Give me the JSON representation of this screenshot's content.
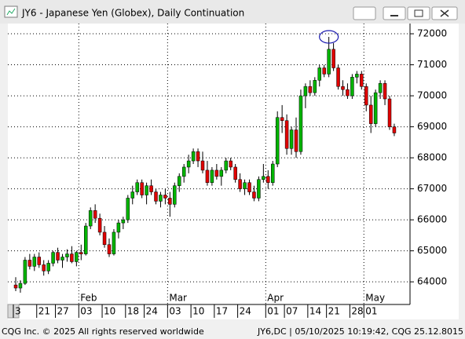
{
  "chart_data": {
    "type": "candlestick",
    "title": "JY6 - Japanese Yen (Globex), Daily Continuation",
    "categories": [
      "3",
      null,
      null,
      null,
      null,
      "21",
      null,
      null,
      null,
      "27",
      null,
      null,
      null,
      null,
      "03",
      null,
      null,
      null,
      null,
      "10",
      null,
      null,
      null,
      null,
      "18",
      null,
      null,
      null,
      "24",
      null,
      null,
      null,
      null,
      "03",
      null,
      null,
      null,
      null,
      "10",
      null,
      null,
      null,
      null,
      "17",
      null,
      null,
      null,
      null,
      "24",
      null,
      null,
      null,
      null,
      null,
      "01",
      null,
      null,
      null,
      "07",
      null,
      null,
      null,
      null,
      "14",
      null,
      null,
      null,
      "21",
      null,
      null,
      null,
      null,
      "28",
      null,
      null,
      "01",
      null,
      null,
      null,
      null,
      null,
      null
    ],
    "months": [
      null,
      null,
      null,
      null,
      null,
      null,
      null,
      null,
      null,
      null,
      null,
      null,
      null,
      null,
      "Feb",
      null,
      null,
      null,
      null,
      null,
      null,
      null,
      null,
      null,
      null,
      null,
      null,
      null,
      null,
      null,
      null,
      null,
      null,
      "Mar",
      null,
      null,
      null,
      null,
      null,
      null,
      null,
      null,
      null,
      null,
      null,
      null,
      null,
      null,
      null,
      null,
      null,
      null,
      null,
      null,
      "Apr",
      null,
      null,
      null,
      null,
      null,
      null,
      null,
      null,
      null,
      null,
      null,
      null,
      null,
      null,
      null,
      null,
      null,
      null,
      null,
      null,
      "May",
      null,
      null,
      null,
      null,
      null,
      null
    ],
    "open": [
      63900,
      63800,
      63950,
      64700,
      64500,
      64800,
      64550,
      64350,
      64600,
      64950,
      64700,
      64800,
      64900,
      64650,
      64950,
      64900,
      65800,
      66300,
      66050,
      65600,
      65200,
      64900,
      65600,
      65900,
      66000,
      66700,
      66900,
      67200,
      66800,
      67100,
      66900,
      66600,
      66800,
      66700,
      66500,
      67100,
      67400,
      67700,
      67900,
      68200,
      67900,
      67600,
      67200,
      67600,
      67400,
      67600,
      67900,
      67700,
      67300,
      67000,
      67200,
      66900,
      66700,
      67300,
      67400,
      67200,
      67800,
      69300,
      69200,
      68300,
      68900,
      68200,
      70000,
      70300,
      70100,
      70500,
      70900,
      70700,
      71500,
      70900,
      70300,
      70200,
      70000,
      70600,
      70700,
      70300,
      69700,
      69100,
      70100,
      70400,
      69900,
      69000
    ],
    "high": [
      64150,
      64050,
      64800,
      64900,
      64900,
      64950,
      64700,
      64700,
      65000,
      65100,
      64900,
      65050,
      65150,
      65000,
      65200,
      65900,
      66400,
      66500,
      66200,
      65800,
      65400,
      65700,
      66000,
      66100,
      66800,
      67100,
      67300,
      67300,
      67200,
      67300,
      67000,
      66900,
      67000,
      66900,
      67200,
      67500,
      67800,
      68100,
      68300,
      68300,
      68200,
      67900,
      67700,
      67800,
      67700,
      68000,
      68000,
      67800,
      67500,
      67300,
      67300,
      67100,
      67400,
      67800,
      67600,
      67900,
      69500,
      69700,
      69400,
      69000,
      69300,
      70200,
      70400,
      70500,
      70600,
      71000,
      71000,
      71900,
      71700,
      71000,
      70500,
      70400,
      70700,
      70800,
      70800,
      70400,
      70000,
      70200,
      70500,
      70500,
      70000,
      69100
    ],
    "low": [
      63700,
      63650,
      63900,
      64400,
      64350,
      64450,
      64200,
      64250,
      64500,
      64600,
      64450,
      64650,
      64600,
      64500,
      64700,
      64850,
      65700,
      65900,
      65500,
      65100,
      64800,
      64850,
      65400,
      65700,
      65900,
      66500,
      66800,
      66700,
      66500,
      66800,
      66500,
      66400,
      66500,
      66100,
      66400,
      66900,
      67200,
      67500,
      67800,
      67700,
      67500,
      67100,
      67100,
      67300,
      67100,
      67500,
      67600,
      67200,
      66900,
      66800,
      66800,
      66600,
      66600,
      67200,
      67000,
      67100,
      67700,
      68800,
      68100,
      68100,
      68000,
      68100,
      69600,
      70000,
      70000,
      70300,
      70600,
      70600,
      70800,
      70200,
      70000,
      69900,
      69900,
      70400,
      70200,
      69500,
      68800,
      69000,
      69900,
      69700,
      68900,
      68700
    ],
    "close": [
      63800,
      63950,
      64700,
      64500,
      64800,
      64550,
      64350,
      64600,
      64950,
      64700,
      64800,
      64900,
      64650,
      64950,
      64900,
      65800,
      66300,
      66050,
      65600,
      65200,
      64900,
      65600,
      65900,
      66000,
      66700,
      66900,
      67200,
      66800,
      67100,
      66900,
      66600,
      66800,
      66700,
      66500,
      67100,
      67400,
      67700,
      67900,
      68200,
      67900,
      67600,
      67200,
      67600,
      67400,
      67600,
      67900,
      67700,
      67300,
      67000,
      67200,
      66900,
      66700,
      67300,
      67400,
      67200,
      67800,
      69300,
      69200,
      68300,
      68900,
      68200,
      70000,
      70300,
      70100,
      70500,
      70900,
      70700,
      71500,
      70900,
      70300,
      70200,
      70000,
      70600,
      70700,
      70300,
      69700,
      69100,
      70100,
      70400,
      69900,
      69000,
      68800
    ],
    "up_color": "#00b400",
    "down_color": "#e00000",
    "ylim": [
      63270,
      72330
    ],
    "yticks": [
      64000,
      65000,
      66000,
      67000,
      68000,
      69000,
      70000,
      71000,
      72000
    ],
    "grid": true
  },
  "footer": {
    "left": "CQG Inc. © 2025 All rights reserved worldwide",
    "right": "JY6,DC | 05/10/2025 10:19:42, CQG 25.12.8015"
  }
}
